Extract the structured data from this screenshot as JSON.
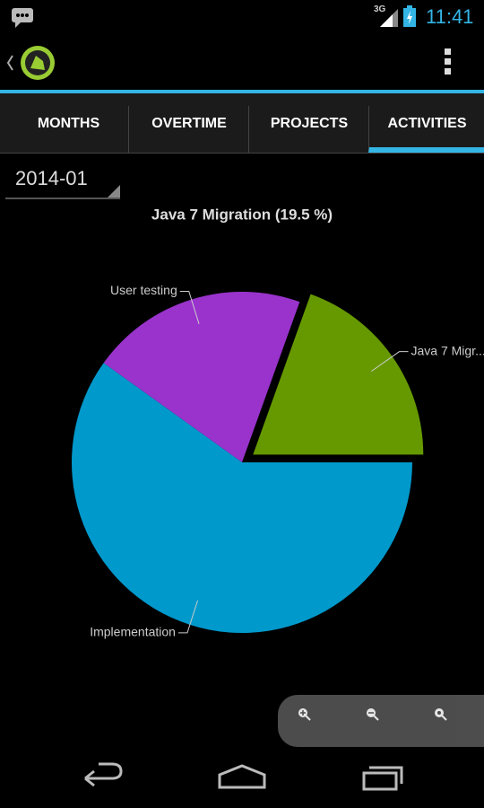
{
  "status_bar": {
    "network": "3G",
    "time": "11:41"
  },
  "tabs": [
    "MONTHS",
    "OVERTIME",
    "PROJECTS",
    "ACTIVITIES"
  ],
  "selector": {
    "value": "2014-01"
  },
  "chart_data": {
    "type": "pie",
    "title": "Java 7 Migration (19.5 %)",
    "categories": [
      "Java 7 Migr...",
      "User testing",
      "Implementation"
    ],
    "values": [
      19.5,
      20.6,
      59.9
    ],
    "colors": [
      "#669900",
      "#9933cc",
      "#0099cc"
    ]
  }
}
